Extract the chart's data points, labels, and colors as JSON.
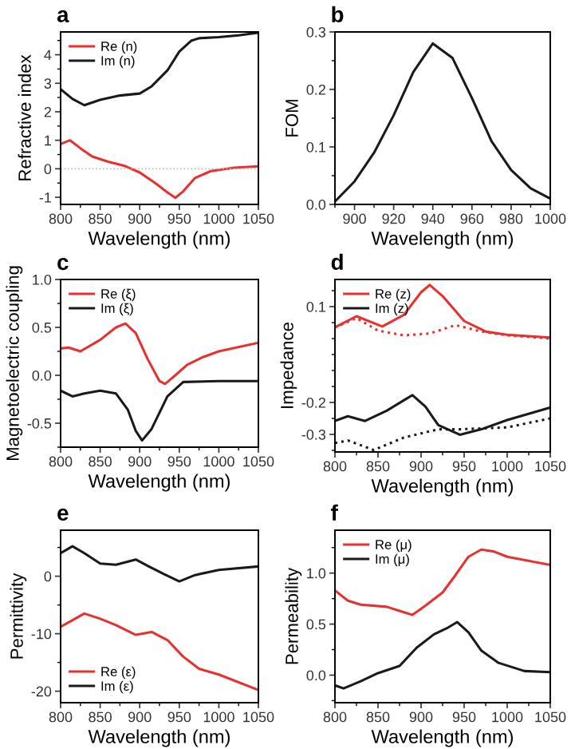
{
  "chart_data": [
    {
      "type": "line",
      "title": "a",
      "xlabel": "Wavelength (nm)",
      "ylabel": "Refractive index",
      "xlim": [
        800,
        1050
      ],
      "xticks": [
        800,
        850,
        900,
        950,
        1000,
        1050
      ],
      "ylim": [
        -1.25,
        4.8
      ],
      "yticks": [
        {
          "value": -1,
          "label": "-1"
        },
        0,
        1,
        2,
        3,
        4
      ],
      "legend": "top left",
      "ref_lines": [
        {
          "axis": "y",
          "value": 0,
          "color": "#bbbbbb",
          "line_style": "dotted"
        }
      ],
      "series": [
        {
          "name": "Re (n)",
          "color": "#e8302e",
          "x": [
            800,
            812,
            825,
            840,
            860,
            880,
            900,
            920,
            935,
            945,
            955,
            970,
            990,
            1020,
            1050
          ],
          "values": [
            0.87,
            1.0,
            0.72,
            0.43,
            0.25,
            0.11,
            -0.13,
            -0.51,
            -0.83,
            -1.02,
            -0.79,
            -0.32,
            -0.08,
            0.04,
            0.09
          ]
        },
        {
          "name": "Im (n)",
          "color": "#1a1a1a",
          "x": [
            800,
            815,
            830,
            850,
            875,
            900,
            915,
            935,
            950,
            965,
            975,
            1000,
            1025,
            1050
          ],
          "values": [
            2.79,
            2.45,
            2.23,
            2.42,
            2.57,
            2.64,
            2.89,
            3.45,
            4.11,
            4.49,
            4.58,
            4.62,
            4.68,
            4.77
          ]
        }
      ]
    },
    {
      "type": "line",
      "title": "b",
      "xlabel": "Wavelength (nm)",
      "ylabel": "FOM",
      "xlim": [
        890,
        1000
      ],
      "xticks": [
        900,
        920,
        940,
        960,
        980,
        1000
      ],
      "ylim": [
        0,
        0.3
      ],
      "yticks": [
        {
          "value": 0,
          "label": "0.0"
        },
        0.1,
        0.2,
        0.3
      ],
      "series": [
        {
          "color": "#1a1a1a",
          "x": [
            890,
            900,
            910,
            920,
            930,
            940,
            950,
            960,
            970,
            980,
            990,
            1000
          ],
          "values": [
            0.005,
            0.04,
            0.09,
            0.155,
            0.23,
            0.28,
            0.255,
            0.185,
            0.11,
            0.06,
            0.028,
            0.01
          ]
        }
      ]
    },
    {
      "type": "line",
      "title": "c",
      "xlabel": "Wavelength (nm)",
      "ylabel": "Magnetoelectric coupling",
      "xlim": [
        800,
        1050
      ],
      "xticks": [
        800,
        850,
        900,
        950,
        1000,
        1050
      ],
      "ylim": [
        -0.75,
        1.0
      ],
      "yticks": [
        {
          "value": -0.5,
          "label": "-0.5"
        },
        {
          "value": 0,
          "label": "0.0"
        },
        0.5,
        {
          "value": 1,
          "label": "1.0"
        }
      ],
      "legend": "top left",
      "series": [
        {
          "name": "Re (ξ)",
          "color": "#e8302e",
          "x": [
            800,
            810,
            825,
            850,
            870,
            882,
            895,
            910,
            925,
            932,
            945,
            960,
            980,
            1000,
            1050
          ],
          "values": [
            0.28,
            0.29,
            0.25,
            0.37,
            0.5,
            0.54,
            0.44,
            0.17,
            -0.06,
            -0.09,
            0.0,
            0.11,
            0.19,
            0.25,
            0.34
          ]
        },
        {
          "name": "Im (ξ)",
          "color": "#1a1a1a",
          "x": [
            800,
            815,
            830,
            850,
            870,
            885,
            895,
            903,
            915,
            935,
            955,
            1000,
            1050
          ],
          "values": [
            -0.16,
            -0.22,
            -0.19,
            -0.16,
            -0.19,
            -0.36,
            -0.58,
            -0.68,
            -0.56,
            -0.22,
            -0.07,
            -0.06,
            -0.06
          ]
        }
      ]
    },
    {
      "type": "line",
      "title": "d",
      "xlabel": "Wavelength (nm)",
      "ylabel": "Impedance",
      "xlim": [
        800,
        1050
      ],
      "xticks": [
        800,
        850,
        900,
        950,
        1000,
        1050
      ],
      "ylim": [
        -0.355,
        0.185
      ],
      "yticks": [
        {
          "value": -0.3,
          "label": "-0.3"
        },
        {
          "value": -0.2,
          "label": "-0.2"
        },
        0.1
      ],
      "legend": "top left",
      "series": [
        {
          "name": "Re (z)",
          "color": "#e8302e",
          "x": [
            800,
            825,
            855,
            880,
            900,
            910,
            925,
            950,
            975,
            1000,
            1050
          ],
          "values": [
            0.035,
            0.07,
            0.038,
            0.074,
            0.145,
            0.168,
            0.133,
            0.055,
            0.022,
            0.012,
            0.003
          ]
        },
        {
          "color": "#e8302e",
          "line_style": "dotted",
          "x": [
            800,
            825,
            850,
            880,
            910,
            940,
            970,
            1000,
            1050
          ],
          "values": [
            0.035,
            0.064,
            0.025,
            0.01,
            0.016,
            0.042,
            0.022,
            0.01,
            0.0
          ]
        },
        {
          "name": "Im (z)",
          "color": "#1a1a1a",
          "x": [
            800,
            815,
            835,
            860,
            890,
            905,
            920,
            945,
            970,
            1000,
            1050
          ],
          "values": [
            -0.258,
            -0.243,
            -0.258,
            -0.226,
            -0.177,
            -0.213,
            -0.271,
            -0.301,
            -0.284,
            -0.255,
            -0.216
          ]
        },
        {
          "color": "#1a1a1a",
          "line_style": "dotted",
          "x": [
            800,
            815,
            845,
            880,
            920,
            945,
            1000,
            1050
          ],
          "values": [
            -0.327,
            -0.319,
            -0.349,
            -0.31,
            -0.284,
            -0.284,
            -0.278,
            -0.25
          ]
        }
      ]
    },
    {
      "type": "line",
      "title": "e",
      "xlabel": "Wavelength (nm)",
      "ylabel": "Permittivity",
      "xlim": [
        800,
        1050
      ],
      "xticks": [
        800,
        850,
        900,
        950,
        1000,
        1050
      ],
      "ylim": [
        -22,
        8
      ],
      "yticks": [
        {
          "value": -20,
          "label": "-20"
        },
        {
          "value": -10,
          "label": "-10"
        },
        0
      ],
      "legend": "bottom left",
      "series": [
        {
          "name": "Re (ε)",
          "color": "#e8302e",
          "x": [
            800,
            830,
            850,
            870,
            895,
            915,
            935,
            955,
            975,
            1000,
            1050
          ],
          "values": [
            -8.8,
            -6.5,
            -7.4,
            -8.5,
            -10.2,
            -9.7,
            -11.1,
            -14.0,
            -16.1,
            -17.1,
            -19.8
          ]
        },
        {
          "name": "Im (ε)",
          "color": "#1a1a1a",
          "x": [
            800,
            815,
            830,
            850,
            870,
            895,
            910,
            930,
            950,
            970,
            1000,
            1050
          ],
          "values": [
            4.0,
            5.2,
            4.0,
            2.2,
            2.0,
            2.9,
            1.8,
            0.4,
            -0.9,
            0.2,
            1.1,
            1.7
          ]
        }
      ]
    },
    {
      "type": "line",
      "title": "f",
      "xlabel": "Wavelength (nm)",
      "ylabel": "Permeability",
      "xlim": [
        800,
        1050
      ],
      "xticks": [
        800,
        850,
        900,
        950,
        1000,
        1050
      ],
      "ylim": [
        -0.27,
        1.42
      ],
      "yticks": [
        {
          "value": 0,
          "label": "0.0"
        },
        0.5,
        {
          "value": 1,
          "label": "1.0"
        }
      ],
      "legend": "top left",
      "series": [
        {
          "name": "Re (μ)",
          "color": "#e8302e",
          "x": [
            800,
            815,
            830,
            860,
            875,
            890,
            905,
            925,
            940,
            955,
            970,
            985,
            1000,
            1050
          ],
          "values": [
            0.83,
            0.73,
            0.69,
            0.67,
            0.63,
            0.59,
            0.68,
            0.81,
            0.98,
            1.16,
            1.23,
            1.21,
            1.16,
            1.08
          ]
        },
        {
          "name": "Im (μ)",
          "color": "#1a1a1a",
          "x": [
            800,
            810,
            830,
            850,
            875,
            895,
            915,
            930,
            942,
            955,
            970,
            990,
            1020,
            1050
          ],
          "values": [
            -0.1,
            -0.13,
            -0.06,
            0.02,
            0.09,
            0.27,
            0.4,
            0.46,
            0.52,
            0.42,
            0.24,
            0.12,
            0.04,
            0.03
          ]
        }
      ]
    }
  ]
}
